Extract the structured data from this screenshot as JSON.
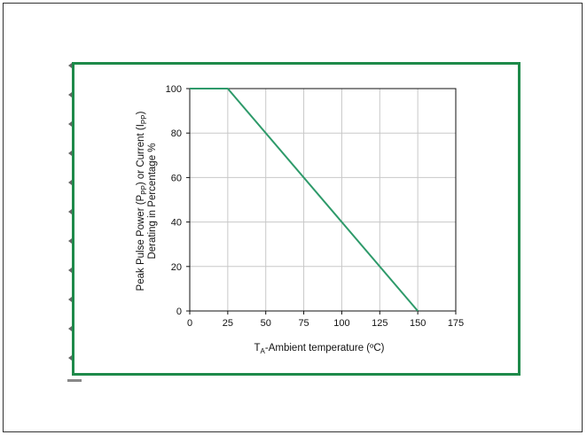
{
  "chart_data": {
    "type": "line",
    "xlabel": "TA-Ambient temperature (ºC)",
    "xlabel_parts": {
      "main": "T",
      "sub": "A",
      "rest": "-Ambient temperature (ºC)"
    },
    "ylabel_line1": "Peak Pulse Power (Ppp) or Current (Ipp)",
    "ylabel_line1_parts": {
      "a": "Peak Pulse Power (P",
      "sub1": "PP",
      "b": ") or Current (I",
      "sub2": "PP",
      "c": ")"
    },
    "ylabel_line2": "Derating in Percentage %",
    "x_ticks": [
      0,
      25,
      50,
      75,
      100,
      125,
      150,
      175
    ],
    "y_ticks": [
      0,
      20,
      40,
      60,
      80,
      100
    ],
    "xlim": [
      0,
      175
    ],
    "ylim": [
      0,
      100
    ],
    "grid": true,
    "series": [
      {
        "x": [
          0,
          25,
          150
        ],
        "y": [
          100,
          100,
          0
        ]
      }
    ]
  },
  "colors": {
    "line": "#2e9a6a",
    "frame": "#1e8a4a",
    "grid": "#c8c8c8"
  }
}
